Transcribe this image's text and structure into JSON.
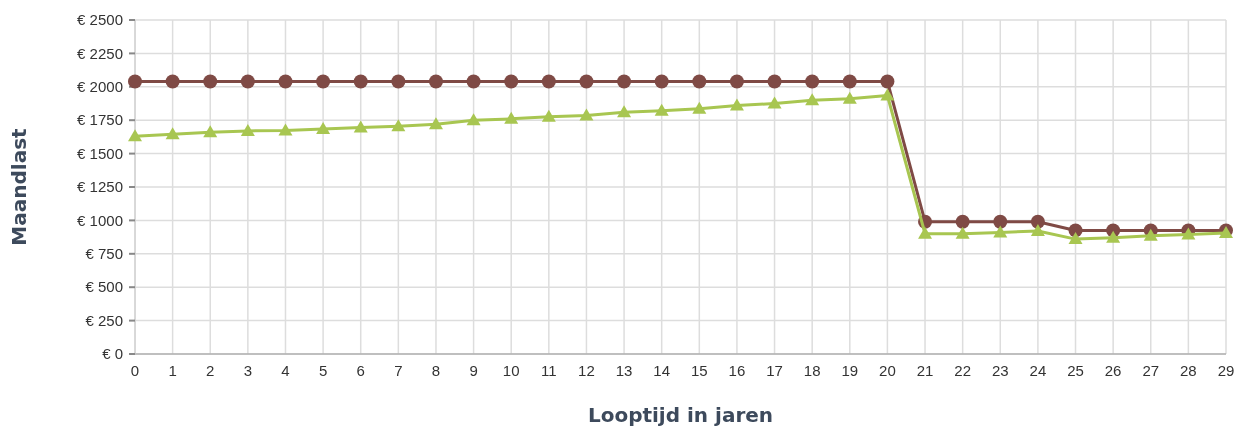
{
  "chart_data": {
    "type": "line",
    "xlabel": "Looptijd in jaren",
    "ylabel": "Maandlast",
    "x": [
      0,
      1,
      2,
      3,
      4,
      5,
      6,
      7,
      8,
      9,
      10,
      11,
      12,
      13,
      14,
      15,
      16,
      17,
      18,
      19,
      20,
      21,
      22,
      23,
      24,
      25,
      26,
      27,
      28,
      29
    ],
    "series": [
      {
        "color": "#7f4a45",
        "marker": "circle",
        "values": [
          2040,
          2040,
          2040,
          2040,
          2040,
          2040,
          2040,
          2040,
          2040,
          2040,
          2040,
          2040,
          2040,
          2040,
          2040,
          2040,
          2040,
          2040,
          2040,
          2040,
          2040,
          990,
          990,
          990,
          990,
          925,
          925,
          925,
          925,
          925
        ]
      },
      {
        "color": "#a8c651",
        "marker": "triangle",
        "values": [
          1630,
          1645,
          1660,
          1670,
          1672,
          1685,
          1695,
          1705,
          1720,
          1750,
          1760,
          1775,
          1785,
          1810,
          1820,
          1835,
          1860,
          1875,
          1900,
          1910,
          1935,
          900,
          900,
          910,
          920,
          860,
          870,
          885,
          895,
          905
        ]
      }
    ],
    "xlim": [
      0,
      29
    ],
    "xticks": [
      0,
      1,
      2,
      3,
      4,
      5,
      6,
      7,
      8,
      9,
      10,
      11,
      12,
      13,
      14,
      15,
      16,
      17,
      18,
      19,
      20,
      21,
      22,
      23,
      24,
      25,
      26,
      27,
      28,
      29
    ],
    "ylim": [
      0,
      2500
    ],
    "yticks": [
      {
        "value": 0,
        "label": "€ 0"
      },
      {
        "value": 250,
        "label": "€ 250"
      },
      {
        "value": 500,
        "label": "€ 500"
      },
      {
        "value": 750,
        "label": "€ 750"
      },
      {
        "value": 1000,
        "label": "€ 1000"
      },
      {
        "value": 1250,
        "label": "€ 1250"
      },
      {
        "value": 1500,
        "label": "€ 1500"
      },
      {
        "value": 1750,
        "label": "€ 1750"
      },
      {
        "value": 2000,
        "label": "€ 2000"
      },
      {
        "value": 2250,
        "label": "€ 2250"
      },
      {
        "value": 2500,
        "label": "€ 2500"
      }
    ],
    "grid": true,
    "line_style": "solid"
  }
}
